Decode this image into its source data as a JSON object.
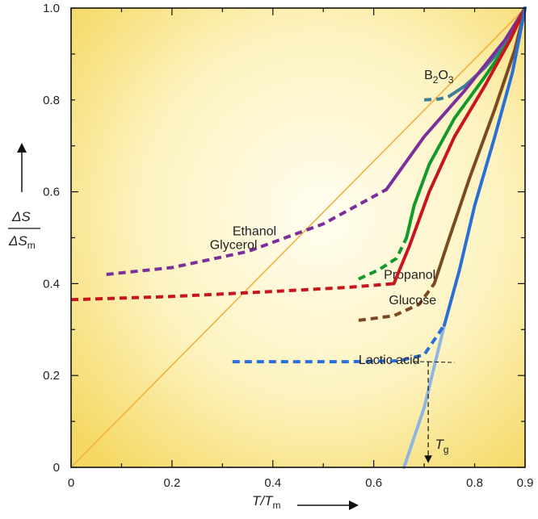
{
  "chart_data": {
    "type": "line",
    "title": "",
    "xlabel": {
      "main": "T/T",
      "sub": "m"
    },
    "ylabel": {
      "num": "ΔS",
      "den_main": "ΔS",
      "den_sub": "m"
    },
    "xlim": [
      0,
      0.9
    ],
    "ylim": [
      0,
      1.0
    ],
    "x_ticks": [
      {
        "value": 0,
        "label": "0"
      },
      {
        "value": 0.2,
        "label": "0.2"
      },
      {
        "value": 0.4,
        "label": "0.4"
      },
      {
        "value": 0.6,
        "label": "0.6"
      },
      {
        "value": 0.8,
        "label": "0.8"
      },
      {
        "value": 0.9,
        "label": "0.9"
      }
    ],
    "y_ticks": [
      {
        "value": 0,
        "label": "0"
      },
      {
        "value": 0.2,
        "label": "0.2"
      },
      {
        "value": 0.4,
        "label": "0.4"
      },
      {
        "value": 0.6,
        "label": "0.6"
      },
      {
        "value": 0.8,
        "label": "0.8"
      },
      {
        "value": 1.0,
        "label": "1.0"
      }
    ],
    "reference_line": {
      "name": "ideal-gas line",
      "color": "#f2b13a",
      "points": [
        [
          0,
          0
        ],
        [
          0.9,
          1.0
        ]
      ]
    },
    "series": [
      {
        "name": "B2O3",
        "label_main": "B",
        "label_sub1": "2",
        "label_mid": "O",
        "label_sub2": "3",
        "color": "#3f7f96",
        "label_at": [
          0.7,
          0.845
        ],
        "solid": [
          [
            0.75,
            0.808
          ],
          [
            0.78,
            0.83
          ],
          [
            0.82,
            0.87
          ],
          [
            0.86,
            0.92
          ],
          [
            0.9,
            1.0
          ]
        ],
        "dashed": [
          [
            0.7,
            0.8
          ],
          [
            0.73,
            0.802
          ],
          [
            0.75,
            0.808
          ]
        ]
      },
      {
        "name": "Ethanol",
        "color": "#7b2f9b",
        "label_at": [
          0.32,
          0.505
        ],
        "solid": [
          [
            0.625,
            0.605
          ],
          [
            0.7,
            0.72
          ],
          [
            0.78,
            0.82
          ],
          [
            0.86,
            0.93
          ],
          [
            0.9,
            1.0
          ]
        ],
        "dashed": [
          [
            0.07,
            0.42
          ],
          [
            0.2,
            0.435
          ],
          [
            0.35,
            0.47
          ],
          [
            0.5,
            0.53
          ],
          [
            0.625,
            0.605
          ]
        ]
      },
      {
        "name": "Propanol",
        "color": "#119a2a",
        "label_at": [
          0.62,
          0.41
        ],
        "solid": [
          [
            0.665,
            0.5
          ],
          [
            0.68,
            0.57
          ],
          [
            0.71,
            0.66
          ],
          [
            0.76,
            0.76
          ],
          [
            0.82,
            0.85
          ],
          [
            0.87,
            0.93
          ],
          [
            0.9,
            1.0
          ]
        ],
        "dashed": [
          [
            0.57,
            0.41
          ],
          [
            0.61,
            0.43
          ],
          [
            0.645,
            0.455
          ],
          [
            0.665,
            0.5
          ]
        ]
      },
      {
        "name": "Glycerol",
        "color": "#c8141c",
        "label_at": [
          0.275,
          0.475
        ],
        "solid": [
          [
            0.64,
            0.4
          ],
          [
            0.67,
            0.48
          ],
          [
            0.71,
            0.6
          ],
          [
            0.76,
            0.72
          ],
          [
            0.82,
            0.83
          ],
          [
            0.87,
            0.93
          ],
          [
            0.9,
            1.0
          ]
        ],
        "dashed": [
          [
            0.0,
            0.365
          ],
          [
            0.2,
            0.372
          ],
          [
            0.4,
            0.383
          ],
          [
            0.55,
            0.392
          ],
          [
            0.64,
            0.4
          ]
        ]
      },
      {
        "name": "Glucose",
        "color": "#7b4a22",
        "label_at": [
          0.63,
          0.355
        ],
        "solid": [
          [
            0.72,
            0.4
          ],
          [
            0.75,
            0.5
          ],
          [
            0.79,
            0.63
          ],
          [
            0.84,
            0.78
          ],
          [
            0.88,
            0.91
          ],
          [
            0.9,
            1.0
          ]
        ],
        "dashed": [
          [
            0.57,
            0.32
          ],
          [
            0.64,
            0.33
          ],
          [
            0.69,
            0.355
          ],
          [
            0.72,
            0.4
          ]
        ]
      },
      {
        "name": "Lactic acid",
        "color": "#2a6fd6",
        "label_at": [
          0.57,
          0.225
        ],
        "solid": [
          [
            0.74,
            0.31
          ],
          [
            0.77,
            0.43
          ],
          [
            0.8,
            0.57
          ],
          [
            0.84,
            0.72
          ],
          [
            0.875,
            0.86
          ],
          [
            0.9,
            1.0
          ]
        ],
        "dashed": [
          [
            0.32,
            0.23
          ],
          [
            0.55,
            0.23
          ],
          [
            0.65,
            0.232
          ],
          [
            0.7,
            0.245
          ],
          [
            0.74,
            0.31
          ]
        ],
        "extrapolation": {
          "color": "#8fb6e3",
          "points": [
            [
              0.74,
              0.31
            ],
            [
              0.7,
              0.13
            ],
            [
              0.66,
              0.0
            ]
          ]
        }
      }
    ],
    "annotation": {
      "label_main": "T",
      "label_sub": "g",
      "at": [
        0.715,
        0.04
      ],
      "x": 0.708,
      "y": 0.23,
      "hline_to": 0.76
    }
  }
}
